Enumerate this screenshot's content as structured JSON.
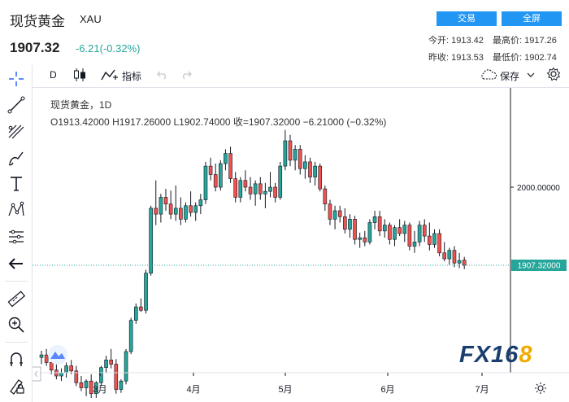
{
  "header": {
    "title": "现货黄金",
    "symbol": "XAU",
    "price": "1907.32",
    "change": "-6.21(-0.32%)",
    "trade_btn": "交易",
    "fullscreen_btn": "全屏",
    "stats": {
      "open_label": "今开:",
      "open": "1913.42",
      "high_label": "最高价:",
      "high": "1917.26",
      "prev_close_label": "昨收:",
      "prev_close": "1913.53",
      "low_label": "最低价:",
      "low": "1902.74"
    }
  },
  "toolbar": {
    "interval": "D",
    "indicators_label": "指标",
    "save_label": "保存"
  },
  "legend": {
    "line1": "现货黄金，1D",
    "ohlc": "O1913.42000  H1917.26000  L1902.74000  收=1907.32000  −6.21000 (−0.32%)"
  },
  "chart_data": {
    "type": "candlestick",
    "y_ticks": [
      "2000.00000"
    ],
    "last_price_label": "1907.32000",
    "x_ticks": [
      "3月",
      "4月",
      "5月",
      "6月",
      "7月"
    ],
    "up_color": "#26a69a",
    "down_color": "#ef5350",
    "candles": [
      [
        1798,
        1806,
        1790,
        1801
      ],
      [
        1801,
        1808,
        1788,
        1792
      ],
      [
        1792,
        1797,
        1778,
        1783
      ],
      [
        1783,
        1790,
        1772,
        1776
      ],
      [
        1776,
        1785,
        1770,
        1780
      ],
      [
        1780,
        1792,
        1774,
        1788
      ],
      [
        1788,
        1795,
        1778,
        1782
      ],
      [
        1782,
        1788,
        1764,
        1768
      ],
      [
        1768,
        1776,
        1758,
        1762
      ],
      [
        1762,
        1772,
        1752,
        1770
      ],
      [
        1770,
        1778,
        1750,
        1755
      ],
      [
        1755,
        1770,
        1750,
        1768
      ],
      [
        1768,
        1788,
        1764,
        1786
      ],
      [
        1786,
        1800,
        1780,
        1795
      ],
      [
        1795,
        1808,
        1785,
        1790
      ],
      [
        1790,
        1796,
        1755,
        1760
      ],
      [
        1760,
        1772,
        1756,
        1770
      ],
      [
        1770,
        1808,
        1766,
        1805
      ],
      [
        1805,
        1845,
        1802,
        1842
      ],
      [
        1842,
        1862,
        1838,
        1858
      ],
      [
        1858,
        1868,
        1852,
        1854
      ],
      [
        1854,
        1902,
        1850,
        1898
      ],
      [
        1898,
        1978,
        1895,
        1975
      ],
      [
        1975,
        2008,
        1955,
        1968
      ],
      [
        1968,
        1992,
        1958,
        1988
      ],
      [
        1988,
        1998,
        1972,
        1980
      ],
      [
        1980,
        1996,
        1962,
        1968
      ],
      [
        1968,
        2002,
        1960,
        1975
      ],
      [
        1975,
        1988,
        1955,
        1962
      ],
      [
        1962,
        1982,
        1958,
        1978
      ],
      [
        1978,
        1995,
        1965,
        1970
      ],
      [
        1970,
        1982,
        1960,
        1978
      ],
      [
        1978,
        1992,
        1968,
        1985
      ],
      [
        1985,
        2030,
        1980,
        2025
      ],
      [
        2025,
        2035,
        2008,
        2015
      ],
      [
        2015,
        2028,
        1995,
        2000
      ],
      [
        2000,
        2032,
        1996,
        2028
      ],
      [
        2028,
        2045,
        2020,
        2040
      ],
      [
        2040,
        2048,
        2005,
        2010
      ],
      [
        2010,
        2018,
        1982,
        1988
      ],
      [
        1988,
        2012,
        1982,
        2008
      ],
      [
        2008,
        2020,
        1995,
        2000
      ],
      [
        2000,
        2012,
        1985,
        1992
      ],
      [
        1992,
        2008,
        1978,
        2004
      ],
      [
        2004,
        2012,
        1985,
        1992
      ],
      [
        1992,
        2005,
        1975,
        1995
      ],
      [
        1995,
        2018,
        1988,
        2000
      ],
      [
        2000,
        2005,
        1982,
        1988
      ],
      [
        1988,
        2030,
        1985,
        2025
      ],
      [
        2025,
        2068,
        2020,
        2055
      ],
      [
        2055,
        2062,
        2025,
        2032
      ],
      [
        2032,
        2050,
        2020,
        2045
      ],
      [
        2045,
        2050,
        2015,
        2022
      ],
      [
        2022,
        2038,
        2010,
        2030
      ],
      [
        2030,
        2035,
        2005,
        2012
      ],
      [
        2012,
        2030,
        2002,
        2025
      ],
      [
        2025,
        2028,
        1995,
        1998
      ],
      [
        1998,
        2002,
        1972,
        1980
      ],
      [
        1980,
        1985,
        1955,
        1962
      ],
      [
        1962,
        1978,
        1950,
        1972
      ],
      [
        1972,
        1978,
        1958,
        1965
      ],
      [
        1965,
        1975,
        1945,
        1950
      ],
      [
        1950,
        1968,
        1940,
        1962
      ],
      [
        1962,
        1966,
        1932,
        1938
      ],
      [
        1938,
        1946,
        1928,
        1940
      ],
      [
        1940,
        1948,
        1930,
        1935
      ],
      [
        1935,
        1962,
        1932,
        1958
      ],
      [
        1958,
        1972,
        1950,
        1965
      ],
      [
        1965,
        1972,
        1942,
        1948
      ],
      [
        1948,
        1962,
        1940,
        1955
      ],
      [
        1955,
        1958,
        1932,
        1938
      ],
      [
        1938,
        1955,
        1930,
        1952
      ],
      [
        1952,
        1962,
        1942,
        1945
      ],
      [
        1945,
        1960,
        1935,
        1955
      ],
      [
        1955,
        1958,
        1925,
        1930
      ],
      [
        1930,
        1948,
        1922,
        1935
      ],
      [
        1935,
        1960,
        1930,
        1955
      ],
      [
        1955,
        1962,
        1935,
        1942
      ],
      [
        1942,
        1958,
        1925,
        1932
      ],
      [
        1932,
        1950,
        1928,
        1945
      ],
      [
        1945,
        1950,
        1918,
        1922
      ],
      [
        1922,
        1935,
        1912,
        1915
      ],
      [
        1915,
        1928,
        1908,
        1925
      ],
      [
        1925,
        1930,
        1905,
        1910
      ],
      [
        1910,
        1922,
        1904,
        1913
      ],
      [
        1913.42,
        1917.26,
        1902.74,
        1907.32
      ]
    ]
  }
}
